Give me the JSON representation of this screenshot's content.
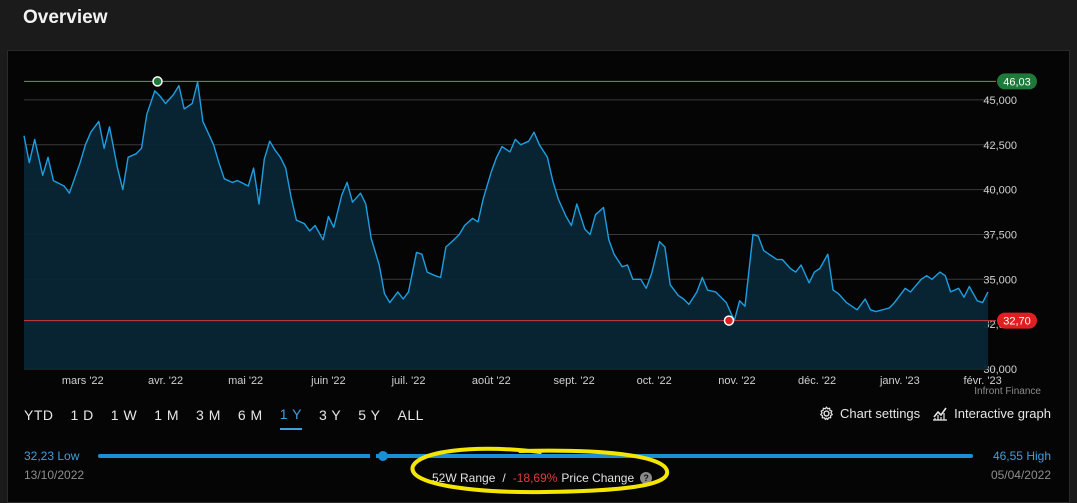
{
  "header": {
    "title": "Overview"
  },
  "chart_data": {
    "type": "area",
    "x_start": "2022-02-07",
    "x_end": "2023-02-06",
    "ylim": [
      30000,
      46500
    ],
    "y_ticks": [
      "30,000",
      "32,500",
      "35,000",
      "37,500",
      "40,000",
      "42,500",
      "45,000"
    ],
    "y_tick_values": [
      30000,
      32500,
      35000,
      37500,
      40000,
      42500,
      45000
    ],
    "x_tick_labels": [
      "mars '22",
      "avr. '22",
      "mai '22",
      "juin '22",
      "juil. '22",
      "août '22",
      "sept. '22",
      "oct. '22",
      "nov. '22",
      "déc. '22",
      "janv. '23",
      "févr. '23"
    ],
    "x_tick_dates": [
      "2022-03-01",
      "2022-04-01",
      "2022-05-01",
      "2022-06-01",
      "2022-07-01",
      "2022-08-01",
      "2022-09-01",
      "2022-10-01",
      "2022-11-01",
      "2022-12-01",
      "2023-01-01",
      "2023-02-01"
    ],
    "high_marker": {
      "label": "46,03",
      "value": 46030,
      "date": "2022-03-29"
    },
    "low_marker": {
      "label": "32,70",
      "value": 32700,
      "date": "2022-10-29"
    },
    "series": [
      {
        "points": [
          [
            "2022-02-07",
            43000
          ],
          [
            "2022-02-09",
            41500
          ],
          [
            "2022-02-11",
            42800
          ],
          [
            "2022-02-14",
            40800
          ],
          [
            "2022-02-16",
            41800
          ],
          [
            "2022-02-18",
            40500
          ],
          [
            "2022-02-22",
            40200
          ],
          [
            "2022-02-24",
            39800
          ],
          [
            "2022-02-28",
            41500
          ],
          [
            "2022-03-02",
            42500
          ],
          [
            "2022-03-04",
            43200
          ],
          [
            "2022-03-07",
            43800
          ],
          [
            "2022-03-09",
            42300
          ],
          [
            "2022-03-11",
            43500
          ],
          [
            "2022-03-14",
            41200
          ],
          [
            "2022-03-16",
            40000
          ],
          [
            "2022-03-18",
            41800
          ],
          [
            "2022-03-21",
            42000
          ],
          [
            "2022-03-23",
            42300
          ],
          [
            "2022-03-25",
            44200
          ],
          [
            "2022-03-28",
            45500
          ],
          [
            "2022-03-30",
            45200
          ],
          [
            "2022-04-01",
            44800
          ],
          [
            "2022-04-04",
            45300
          ],
          [
            "2022-04-06",
            45800
          ],
          [
            "2022-04-08",
            44500
          ],
          [
            "2022-04-11",
            44800
          ],
          [
            "2022-04-13",
            46000
          ],
          [
            "2022-04-15",
            43800
          ],
          [
            "2022-04-19",
            42500
          ],
          [
            "2022-04-21",
            41500
          ],
          [
            "2022-04-23",
            40600
          ],
          [
            "2022-04-26",
            40400
          ],
          [
            "2022-04-28",
            40500
          ],
          [
            "2022-05-02",
            40200
          ],
          [
            "2022-05-04",
            41200
          ],
          [
            "2022-05-06",
            39200
          ],
          [
            "2022-05-08",
            41700
          ],
          [
            "2022-05-10",
            42700
          ],
          [
            "2022-05-12",
            42200
          ],
          [
            "2022-05-14",
            41800
          ],
          [
            "2022-05-16",
            41200
          ],
          [
            "2022-05-18",
            39600
          ],
          [
            "2022-05-20",
            38300
          ],
          [
            "2022-05-23",
            38100
          ],
          [
            "2022-05-25",
            37700
          ],
          [
            "2022-05-27",
            38000
          ],
          [
            "2022-05-30",
            37200
          ],
          [
            "2022-06-01",
            38500
          ],
          [
            "2022-06-03",
            37900
          ],
          [
            "2022-06-06",
            39700
          ],
          [
            "2022-06-08",
            40400
          ],
          [
            "2022-06-10",
            39300
          ],
          [
            "2022-06-13",
            39800
          ],
          [
            "2022-06-15",
            39200
          ],
          [
            "2022-06-17",
            37300
          ],
          [
            "2022-06-20",
            35800
          ],
          [
            "2022-06-22",
            34200
          ],
          [
            "2022-06-24",
            33700
          ],
          [
            "2022-06-27",
            34300
          ],
          [
            "2022-06-29",
            33900
          ],
          [
            "2022-07-01",
            34300
          ],
          [
            "2022-07-04",
            36500
          ],
          [
            "2022-07-06",
            36400
          ],
          [
            "2022-07-08",
            35400
          ],
          [
            "2022-07-11",
            35200
          ],
          [
            "2022-07-13",
            35100
          ],
          [
            "2022-07-15",
            36800
          ],
          [
            "2022-07-18",
            37200
          ],
          [
            "2022-07-20",
            37500
          ],
          [
            "2022-07-22",
            38000
          ],
          [
            "2022-07-25",
            38400
          ],
          [
            "2022-07-27",
            38200
          ],
          [
            "2022-07-29",
            39500
          ],
          [
            "2022-08-01",
            41000
          ],
          [
            "2022-08-03",
            41800
          ],
          [
            "2022-08-05",
            42400
          ],
          [
            "2022-08-08",
            42100
          ],
          [
            "2022-08-10",
            42800
          ],
          [
            "2022-08-12",
            42500
          ],
          [
            "2022-08-15",
            42700
          ],
          [
            "2022-08-17",
            43200
          ],
          [
            "2022-08-19",
            42500
          ],
          [
            "2022-08-22",
            41800
          ],
          [
            "2022-08-24",
            40500
          ],
          [
            "2022-08-26",
            39500
          ],
          [
            "2022-08-29",
            38500
          ],
          [
            "2022-08-31",
            38000
          ],
          [
            "2022-09-02",
            39200
          ],
          [
            "2022-09-05",
            37800
          ],
          [
            "2022-09-07",
            37500
          ],
          [
            "2022-09-09",
            38600
          ],
          [
            "2022-09-12",
            39000
          ],
          [
            "2022-09-14",
            37200
          ],
          [
            "2022-09-16",
            36400
          ],
          [
            "2022-09-19",
            35700
          ],
          [
            "2022-09-21",
            35800
          ],
          [
            "2022-09-23",
            35000
          ],
          [
            "2022-09-26",
            35000
          ],
          [
            "2022-09-28",
            34500
          ],
          [
            "2022-09-30",
            35300
          ],
          [
            "2022-10-03",
            37100
          ],
          [
            "2022-10-05",
            36800
          ],
          [
            "2022-10-07",
            34700
          ],
          [
            "2022-10-10",
            34100
          ],
          [
            "2022-10-12",
            33900
          ],
          [
            "2022-10-14",
            33600
          ],
          [
            "2022-10-17",
            34300
          ],
          [
            "2022-10-19",
            35100
          ],
          [
            "2022-10-21",
            34400
          ],
          [
            "2022-10-24",
            34300
          ],
          [
            "2022-10-26",
            34000
          ],
          [
            "2022-10-28",
            33700
          ],
          [
            "2022-10-31",
            32700
          ],
          [
            "2022-11-02",
            33800
          ],
          [
            "2022-11-04",
            33500
          ],
          [
            "2022-11-07",
            37500
          ],
          [
            "2022-11-09",
            37400
          ],
          [
            "2022-11-11",
            36600
          ],
          [
            "2022-11-14",
            36300
          ],
          [
            "2022-11-16",
            36100
          ],
          [
            "2022-11-18",
            36100
          ],
          [
            "2022-11-21",
            35600
          ],
          [
            "2022-11-23",
            35400
          ],
          [
            "2022-11-25",
            35800
          ],
          [
            "2022-11-28",
            34800
          ],
          [
            "2022-11-30",
            35400
          ],
          [
            "2022-12-02",
            35600
          ],
          [
            "2022-12-05",
            36400
          ],
          [
            "2022-12-07",
            34400
          ],
          [
            "2022-12-09",
            34200
          ],
          [
            "2022-12-12",
            33700
          ],
          [
            "2022-12-14",
            33500
          ],
          [
            "2022-12-16",
            33300
          ],
          [
            "2022-12-19",
            33900
          ],
          [
            "2022-12-21",
            33300
          ],
          [
            "2022-12-23",
            33200
          ],
          [
            "2022-12-28",
            33400
          ],
          [
            "2022-12-30",
            33700
          ],
          [
            "2023-01-03",
            34500
          ],
          [
            "2023-01-05",
            34300
          ],
          [
            "2023-01-09",
            35000
          ],
          [
            "2023-01-11",
            35200
          ],
          [
            "2023-01-13",
            35000
          ],
          [
            "2023-01-16",
            35400
          ],
          [
            "2023-01-18",
            35200
          ],
          [
            "2023-01-20",
            34300
          ],
          [
            "2023-01-23",
            34500
          ],
          [
            "2023-01-25",
            34000
          ],
          [
            "2023-01-27",
            34600
          ],
          [
            "2023-01-30",
            33800
          ],
          [
            "2023-02-01",
            33700
          ],
          [
            "2023-02-03",
            34300
          ]
        ]
      }
    ]
  },
  "source": "Infront Finance",
  "periods": [
    {
      "label": "YTD",
      "active": false
    },
    {
      "label": "1 D",
      "active": false
    },
    {
      "label": "1 W",
      "active": false
    },
    {
      "label": "1 M",
      "active": false
    },
    {
      "label": "3 M",
      "active": false
    },
    {
      "label": "6 M",
      "active": false
    },
    {
      "label": "1 Y",
      "active": true
    },
    {
      "label": "3 Y",
      "active": false
    },
    {
      "label": "5 Y",
      "active": false
    },
    {
      "label": "ALL",
      "active": false
    }
  ],
  "tools": {
    "chart_settings": "Chart settings",
    "chart_settings_icon": "gear-icon",
    "interactive_graph": "Interactive graph",
    "interactive_graph_icon": "chart-line-icon"
  },
  "range52w": {
    "low_label": "32,23 Low",
    "low_date": "13/10/2022",
    "high_label": "46,55 High",
    "high_date": "05/04/2022",
    "low_value": 32.23,
    "high_value": 46.55,
    "current_value": 36.9,
    "range_label": "52W Range",
    "separator": "/",
    "price_change": "-18,69%",
    "price_change_label": "Price Change",
    "help_icon": "question-icon"
  },
  "colors": {
    "line": "#1e9ee0",
    "fill": "#082635",
    "high": "#1f7a3a",
    "low": "#e02020",
    "accent": "#3aa0e0",
    "highlight": "#f5e600"
  }
}
